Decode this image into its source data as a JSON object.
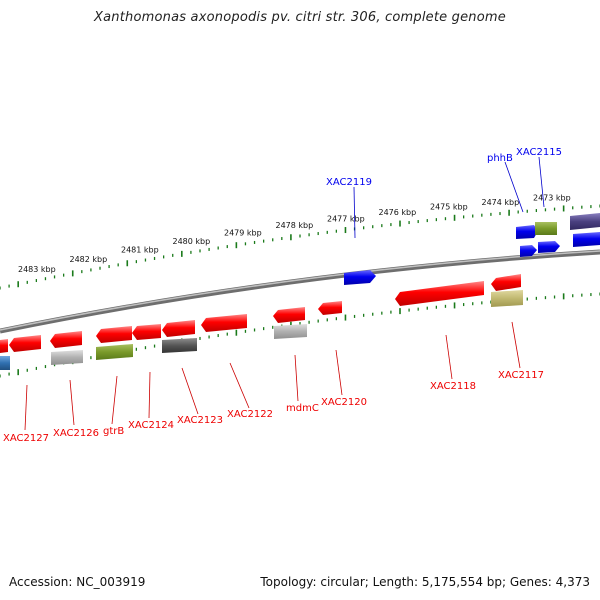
{
  "title": "Xanthomonas axonopodis pv. citri str. 306, complete genome",
  "footer": {
    "accession": "Accession: NC_003919",
    "summary": "Topology: circular; Length: 5,175,554 bp; Genes: 4,373"
  },
  "colors": {
    "forward_gene": "#0000ee",
    "reverse_gene": "#ee0000",
    "tick": "#1a7a1a",
    "backbone": "#808080",
    "cog_olive": "#7a9a2a",
    "cog_tan": "#c0b870",
    "cog_gray": "#b0b0b0",
    "cog_dark": "#505050",
    "cog_purple": "#4a4080",
    "cog_steelblue": "#3070b0"
  },
  "scale_ticks": [
    {
      "label": "2473 kbp",
      "kbp": 2473
    },
    {
      "label": "2474 kbp",
      "kbp": 2474
    },
    {
      "label": "2475 kbp",
      "kbp": 2475
    },
    {
      "label": "2476 kbp",
      "kbp": 2476
    },
    {
      "label": "2477 kbp",
      "kbp": 2477
    },
    {
      "label": "2478 kbp",
      "kbp": 2478
    },
    {
      "label": "2479 kbp",
      "kbp": 2479
    },
    {
      "label": "2480 kbp",
      "kbp": 2480
    },
    {
      "label": "2481 kbp",
      "kbp": 2481
    },
    {
      "label": "2482 kbp",
      "kbp": 2482
    },
    {
      "label": "2483 kbp",
      "kbp": 2483
    }
  ],
  "forward_labels": [
    {
      "name": "XAC2119"
    },
    {
      "name": "phhB"
    },
    {
      "name": "XAC2115"
    }
  ],
  "reverse_labels": [
    {
      "name": "XAC2127"
    },
    {
      "name": "XAC2126"
    },
    {
      "name": "gtrB"
    },
    {
      "name": "XAC2124"
    },
    {
      "name": "XAC2123"
    },
    {
      "name": "XAC2122"
    },
    {
      "name": "mdmC"
    },
    {
      "name": "XAC2120"
    },
    {
      "name": "XAC2118"
    },
    {
      "name": "XAC2117"
    }
  ]
}
